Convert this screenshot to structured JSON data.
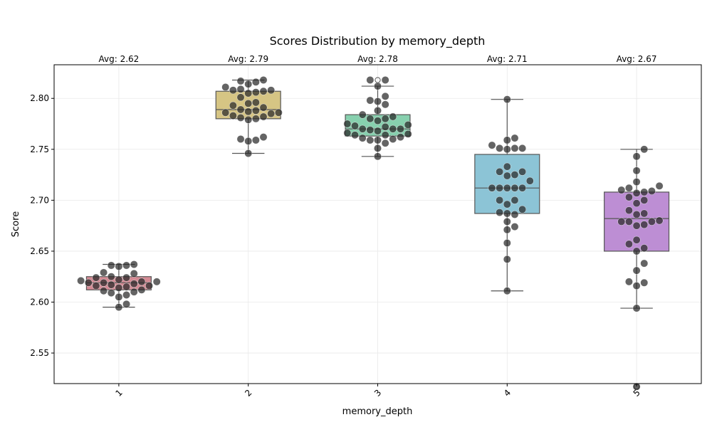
{
  "chart_data": {
    "type": "box",
    "title": "Scores Distribution by memory_depth",
    "xlabel": "memory_depth",
    "ylabel": "Score",
    "ylim": [
      2.52,
      2.833
    ],
    "yticks": [
      "2.55",
      "2.60",
      "2.65",
      "2.70",
      "2.75",
      "2.80"
    ],
    "grid": true,
    "categories": [
      "1",
      "2",
      "3",
      "4",
      "5"
    ],
    "colors": [
      "#d58a94",
      "#d6c584",
      "#87d0ae",
      "#8cc4d6",
      "#bd8ed4"
    ],
    "averages": [
      2.62,
      2.79,
      2.78,
      2.71,
      2.67
    ],
    "avg_labels": [
      "Avg: 2.62",
      "Avg: 2.79",
      "Avg: 2.78",
      "Avg: 2.71",
      "Avg: 2.67"
    ],
    "boxes": [
      {
        "category": "1",
        "whisker_low": 2.595,
        "q1": 2.612,
        "median": 2.619,
        "q3": 2.625,
        "whisker_high": 2.637,
        "outliers": []
      },
      {
        "category": "2",
        "whisker_low": 2.746,
        "q1": 2.78,
        "median": 2.789,
        "q3": 2.807,
        "whisker_high": 2.818,
        "outliers": []
      },
      {
        "category": "3",
        "whisker_low": 2.743,
        "q1": 2.763,
        "median": 2.77,
        "q3": 2.784,
        "whisker_high": 2.812,
        "outliers": [
          2.818
        ]
      },
      {
        "category": "4",
        "whisker_low": 2.611,
        "q1": 2.687,
        "median": 2.712,
        "q3": 2.745,
        "whisker_high": 2.799,
        "outliers": []
      },
      {
        "category": "5",
        "whisker_low": 2.594,
        "q1": 2.65,
        "median": 2.682,
        "q3": 2.708,
        "whisker_high": 2.75,
        "outliers": [
          2.517
        ]
      }
    ],
    "points": [
      [
        2.637,
        2.636,
        2.636,
        2.635,
        2.629,
        2.628,
        2.625,
        2.624,
        2.624,
        2.622,
        2.621,
        2.62,
        2.62,
        2.619,
        2.619,
        2.618,
        2.617,
        2.616,
        2.616,
        2.615,
        2.614,
        2.612,
        2.611,
        2.61,
        2.609,
        2.607,
        2.605,
        2.598,
        2.595
      ],
      [
        2.818,
        2.817,
        2.816,
        2.814,
        2.811,
        2.809,
        2.808,
        2.808,
        2.807,
        2.806,
        2.805,
        2.801,
        2.796,
        2.795,
        2.793,
        2.791,
        2.789,
        2.788,
        2.787,
        2.786,
        2.786,
        2.785,
        2.783,
        2.782,
        2.781,
        2.78,
        2.779,
        2.762,
        2.76,
        2.759,
        2.758,
        2.746
      ],
      [
        2.818,
        2.818,
        2.812,
        2.802,
        2.798,
        2.797,
        2.794,
        2.788,
        2.784,
        2.782,
        2.78,
        2.78,
        2.778,
        2.775,
        2.774,
        2.773,
        2.772,
        2.77,
        2.77,
        2.77,
        2.769,
        2.768,
        2.766,
        2.765,
        2.764,
        2.764,
        2.762,
        2.761,
        2.76,
        2.759,
        2.759,
        2.756,
        2.751,
        2.743
      ],
      [
        2.799,
        2.761,
        2.759,
        2.754,
        2.751,
        2.751,
        2.751,
        2.75,
        2.733,
        2.728,
        2.728,
        2.725,
        2.724,
        2.719,
        2.712,
        2.712,
        2.712,
        2.712,
        2.712,
        2.7,
        2.7,
        2.696,
        2.691,
        2.688,
        2.687,
        2.686,
        2.679,
        2.674,
        2.671,
        2.658,
        2.642,
        2.611
      ],
      [
        2.75,
        2.743,
        2.729,
        2.718,
        2.714,
        2.712,
        2.71,
        2.709,
        2.708,
        2.707,
        2.703,
        2.7,
        2.697,
        2.69,
        2.687,
        2.686,
        2.68,
        2.679,
        2.679,
        2.679,
        2.676,
        2.675,
        2.661,
        2.657,
        2.653,
        2.65,
        2.638,
        2.631,
        2.62,
        2.619,
        2.616,
        2.594,
        2.517
      ]
    ]
  }
}
